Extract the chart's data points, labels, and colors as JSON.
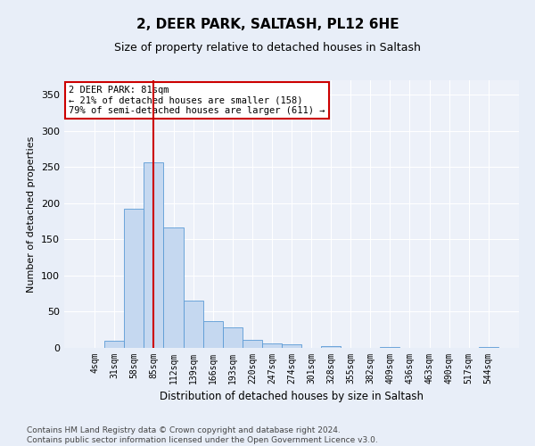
{
  "title": "2, DEER PARK, SALTASH, PL12 6HE",
  "subtitle": "Size of property relative to detached houses in Saltash",
  "xlabel": "Distribution of detached houses by size in Saltash",
  "ylabel": "Number of detached properties",
  "bar_labels": [
    "4sqm",
    "31sqm",
    "58sqm",
    "85sqm",
    "112sqm",
    "139sqm",
    "166sqm",
    "193sqm",
    "220sqm",
    "247sqm",
    "274sqm",
    "301sqm",
    "328sqm",
    "355sqm",
    "382sqm",
    "409sqm",
    "436sqm",
    "463sqm",
    "490sqm",
    "517sqm",
    "544sqm"
  ],
  "bar_values": [
    0,
    10,
    192,
    256,
    167,
    65,
    37,
    28,
    11,
    6,
    5,
    0,
    3,
    0,
    0,
    1,
    0,
    0,
    0,
    0,
    1
  ],
  "bar_color": "#c5d8f0",
  "bar_edge_color": "#5b9bd5",
  "vline_x": 3,
  "vline_color": "#cc0000",
  "annotation_line1": "2 DEER PARK: 81sqm",
  "annotation_line2": "← 21% of detached houses are smaller (158)",
  "annotation_line3": "79% of semi-detached houses are larger (611) →",
  "box_color": "#ffffff",
  "box_edge_color": "#cc0000",
  "ylim": [
    0,
    370
  ],
  "yticks": [
    0,
    50,
    100,
    150,
    200,
    250,
    300,
    350
  ],
  "footer_line1": "Contains HM Land Registry data © Crown copyright and database right 2024.",
  "footer_line2": "Contains public sector information licensed under the Open Government Licence v3.0.",
  "bg_color": "#e8eef8",
  "plot_bg_color": "#edf1f9",
  "grid_color": "#ffffff",
  "title_fontsize": 11,
  "subtitle_fontsize": 9,
  "annotation_fontsize": 7.5,
  "axis_label_fontsize": 8,
  "tick_fontsize": 7,
  "footer_fontsize": 6.5
}
